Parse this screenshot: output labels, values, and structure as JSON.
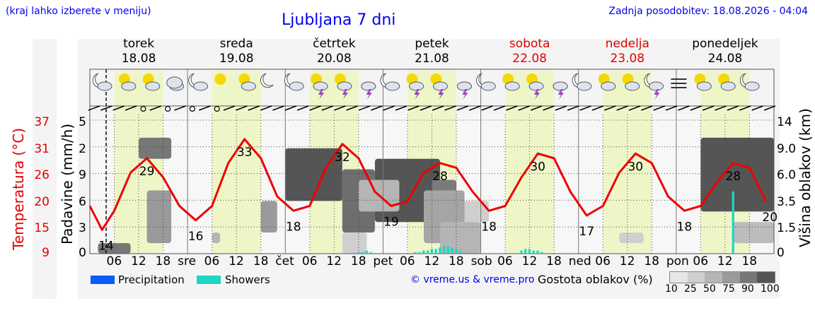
{
  "header": {
    "subtitle_left": "(kraj lahko izberete v meniju)",
    "title": "Ljubljana 7 dni",
    "updated": "Zadnja posodobitev: 18.08.2026 - 04:04"
  },
  "days": [
    {
      "name": "torek",
      "date": "18.08",
      "weekend": false
    },
    {
      "name": "sreda",
      "date": "19.08",
      "weekend": false
    },
    {
      "name": "četrtek",
      "date": "20.08",
      "weekend": false
    },
    {
      "name": "petek",
      "date": "21.08",
      "weekend": false
    },
    {
      "name": "sobota",
      "date": "22.08",
      "weekend": true
    },
    {
      "name": "nedelja",
      "date": "23.08",
      "weekend": true
    },
    {
      "name": "ponedeljek",
      "date": "24.08",
      "weekend": false
    }
  ],
  "axes": {
    "temp_label": "Temperatura (°C)",
    "precip_label": "Padavine (mm/h)",
    "cloud_label": "Višina oblakov (km)",
    "temp_ticks": [
      "37",
      "31",
      "26",
      "20",
      "15",
      "9"
    ],
    "precip_ticks": [
      "5",
      "2",
      "9",
      "6",
      "3",
      "0"
    ],
    "cloud_ticks": [
      "14",
      "9.0",
      "6.0",
      "3.5",
      "1.5",
      "0"
    ],
    "x_day_abbr": [
      "",
      "sre",
      "čet",
      "pet",
      "sob",
      "ned",
      "pon"
    ],
    "x_hours": [
      "06",
      "12",
      "18"
    ]
  },
  "legend": {
    "precipitation": "Precipitation",
    "showers": "Showers",
    "copyright": "© vreme.us & vreme.pro",
    "cloud_density": "Gostota oblakov (%)",
    "density_ticks": [
      "10",
      "25",
      "50",
      "75",
      "90",
      "100"
    ],
    "precip_color": "#0a5cf5",
    "showers_color": "#1cd6c4"
  },
  "weather_icons": [
    "moon-cloud",
    "sun-cloud",
    "sun-cloud",
    "cloud",
    "moon-cloud",
    "sun",
    "sun-cloud",
    "moon",
    "moon-cloud",
    "sun-thunder",
    "sun-thunder",
    "cloud-thunder",
    "moon-cloud",
    "sun-thunder",
    "sun-thunder",
    "cloud-thunder",
    "moon-cloud",
    "sun-cloud",
    "sun-thunder",
    "cloud-thunder",
    "moon-cloud",
    "sun-cloud",
    "sun-cloud",
    "moon-thunder",
    "fog",
    "sun-cloud",
    "sun-cloud",
    "moon-cloud"
  ],
  "chart_data": {
    "type": "line",
    "title": "Ljubljana 7 dni",
    "series": [
      {
        "name": "Temperatura (°C)",
        "color": "#ee0000",
        "points": [
          [
            0,
            19
          ],
          [
            3,
            14
          ],
          [
            6,
            18
          ],
          [
            10,
            26
          ],
          [
            14,
            29
          ],
          [
            18,
            25
          ],
          [
            22,
            19
          ],
          [
            26,
            16
          ],
          [
            30,
            19
          ],
          [
            34,
            28
          ],
          [
            38,
            33
          ],
          [
            42,
            29
          ],
          [
            46,
            21
          ],
          [
            50,
            18
          ],
          [
            54,
            19
          ],
          [
            58,
            27
          ],
          [
            62,
            32
          ],
          [
            66,
            29
          ],
          [
            70,
            22
          ],
          [
            74,
            19
          ],
          [
            78,
            20
          ],
          [
            82,
            26
          ],
          [
            86,
            28
          ],
          [
            90,
            27
          ],
          [
            94,
            22
          ],
          [
            98,
            18
          ],
          [
            102,
            19
          ],
          [
            106,
            25
          ],
          [
            110,
            30
          ],
          [
            114,
            29
          ],
          [
            118,
            22
          ],
          [
            122,
            17
          ],
          [
            126,
            19
          ],
          [
            130,
            26
          ],
          [
            134,
            30
          ],
          [
            138,
            28
          ],
          [
            142,
            21
          ],
          [
            146,
            18
          ],
          [
            150,
            19
          ],
          [
            154,
            24
          ],
          [
            158,
            28
          ],
          [
            162,
            27
          ],
          [
            166,
            20
          ]
        ],
        "extremes": [
          {
            "t": 4,
            "v": 14
          },
          {
            "t": 14,
            "v": 29
          },
          {
            "t": 26,
            "v": 16
          },
          {
            "t": 38,
            "v": 33
          },
          {
            "t": 50,
            "v": 18
          },
          {
            "t": 62,
            "v": 32
          },
          {
            "t": 74,
            "v": 19
          },
          {
            "t": 86,
            "v": 28
          },
          {
            "t": 98,
            "v": 18
          },
          {
            "t": 110,
            "v": 30
          },
          {
            "t": 122,
            "v": 17
          },
          {
            "t": 134,
            "v": 30
          },
          {
            "t": 146,
            "v": 18
          },
          {
            "t": 158,
            "v": 28
          },
          {
            "t": 167,
            "v": 20
          }
        ]
      }
    ],
    "showers_mm": [
      {
        "t": 66,
        "v": 0.1
      },
      {
        "t": 67,
        "v": 0.1
      },
      {
        "t": 68,
        "v": 0.2
      },
      {
        "t": 69,
        "v": 0.1
      },
      {
        "t": 80,
        "v": 0.1
      },
      {
        "t": 81,
        "v": 0.1
      },
      {
        "t": 82,
        "v": 0.2
      },
      {
        "t": 83,
        "v": 0.2
      },
      {
        "t": 84,
        "v": 0.3
      },
      {
        "t": 85,
        "v": 0.3
      },
      {
        "t": 86,
        "v": 0.4
      },
      {
        "t": 87,
        "v": 0.5
      },
      {
        "t": 88,
        "v": 0.5
      },
      {
        "t": 89,
        "v": 0.4
      },
      {
        "t": 90,
        "v": 0.3
      },
      {
        "t": 91,
        "v": 0.2
      },
      {
        "t": 106,
        "v": 0.2
      },
      {
        "t": 107,
        "v": 0.3
      },
      {
        "t": 108,
        "v": 0.3
      },
      {
        "t": 109,
        "v": 0.2
      },
      {
        "t": 110,
        "v": 0.2
      },
      {
        "t": 111,
        "v": 0.1
      },
      {
        "t": 158,
        "v": 2.5
      }
    ],
    "hours_total": 168,
    "x_unit": "hours from 18.08 00:00"
  }
}
